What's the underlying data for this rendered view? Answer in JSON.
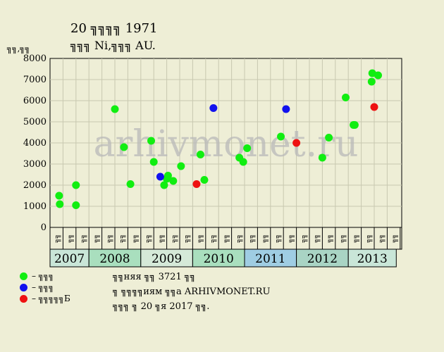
{
  "header": {
    "title_line1": "20 ╗╗╗╗ 1971",
    "title_line2": "╗╗╗ Ni,╗╗╗ AU.",
    "y_unit": "╗╗,╗╗"
  },
  "legend": {
    "items": [
      {
        "label": "– ╗╗╗",
        "color": "#11ee11"
      },
      {
        "label": "– ╗╗╗",
        "color": "#1111ee"
      },
      {
        "label": "– ╗╗╗╗╗Б",
        "color": "#ee1111"
      }
    ]
  },
  "note": {
    "line1": "╗╗няя ╗╗ 3721 ╗╗",
    "line2": "╗ ╗╗╗╗иям ╗╗а ARHIVMONET.RU",
    "line3": "╗╗╗ ╗ 20 ╗я 2017 ╗╗."
  },
  "watermark": "arhivmonet.ru",
  "chart_data": {
    "type": "scatter",
    "ylim": [
      0,
      8000
    ],
    "yticks": [
      0,
      1000,
      2000,
      3000,
      4000,
      5000,
      6000,
      7000,
      8000
    ],
    "grid": true,
    "x_month_labels": [
      "╗╗",
      "╗╗",
      "╗╗",
      "╗╗",
      "╗╗",
      "╗╗",
      "╗╗",
      "╗╗",
      "╗╗",
      "╗╗",
      "╗╗",
      "╗╗",
      "╗╗",
      "╗╗",
      "╗╗",
      "╗╗",
      "╗╗",
      "╗╗",
      "╗╗",
      "╗╗",
      "╗╗",
      "╗╗",
      "╗╗",
      "╗╗",
      "╗╗",
      "╗╗",
      "╗╗"
    ],
    "years": [
      {
        "label": "2007",
        "start": 0,
        "end": 3,
        "color": "#c9e6d8"
      },
      {
        "label": "2008",
        "start": 3,
        "end": 7,
        "color": "#a9dfbe"
      },
      {
        "label": "2009",
        "start": 7,
        "end": 11,
        "color": "#d5e9d8"
      },
      {
        "label": "2010",
        "start": 11,
        "end": 15,
        "color": "#a9dfbe"
      },
      {
        "label": "2011",
        "start": 15,
        "end": 19,
        "color": "#9fcde3"
      },
      {
        "label": "2012",
        "start": 19,
        "end": 23,
        "color": "#a9d4c4"
      },
      {
        "label": "2013",
        "start": 23,
        "end": 26.7,
        "color": "#c9e6d8"
      }
    ],
    "series": [
      {
        "color": "#11ee11",
        "points": [
          {
            "x": 0.2,
            "y": 1500
          },
          {
            "x": 0.25,
            "y": 1100
          },
          {
            "x": 1.5,
            "y": 2000
          },
          {
            "x": 1.5,
            "y": 1050
          },
          {
            "x": 4.5,
            "y": 5600
          },
          {
            "x": 5.2,
            "y": 3800
          },
          {
            "x": 5.7,
            "y": 2050
          },
          {
            "x": 7.3,
            "y": 4100
          },
          {
            "x": 7.5,
            "y": 3100
          },
          {
            "x": 8.3,
            "y": 2000
          },
          {
            "x": 8.5,
            "y": 2300
          },
          {
            "x": 8.6,
            "y": 2450
          },
          {
            "x": 9.0,
            "y": 2200
          },
          {
            "x": 9.6,
            "y": 2900
          },
          {
            "x": 11.1,
            "y": 3450
          },
          {
            "x": 11.4,
            "y": 2250
          },
          {
            "x": 14.1,
            "y": 3300
          },
          {
            "x": 14.4,
            "y": 3100
          },
          {
            "x": 14.7,
            "y": 3750
          },
          {
            "x": 17.3,
            "y": 4300
          },
          {
            "x": 20.5,
            "y": 3300
          },
          {
            "x": 21.0,
            "y": 4250
          },
          {
            "x": 22.3,
            "y": 6150
          },
          {
            "x": 22.9,
            "y": 4850
          },
          {
            "x": 23.0,
            "y": 4850
          },
          {
            "x": 24.3,
            "y": 6900
          },
          {
            "x": 24.35,
            "y": 7300
          },
          {
            "x": 24.8,
            "y": 7200
          }
        ]
      },
      {
        "color": "#1111ee",
        "points": [
          {
            "x": 8.0,
            "y": 2400
          },
          {
            "x": 12.1,
            "y": 5650
          },
          {
            "x": 17.7,
            "y": 5600
          }
        ]
      },
      {
        "color": "#ee1111",
        "points": [
          {
            "x": 10.8,
            "y": 2050
          },
          {
            "x": 18.5,
            "y": 4000
          },
          {
            "x": 24.5,
            "y": 5700
          }
        ]
      }
    ]
  }
}
